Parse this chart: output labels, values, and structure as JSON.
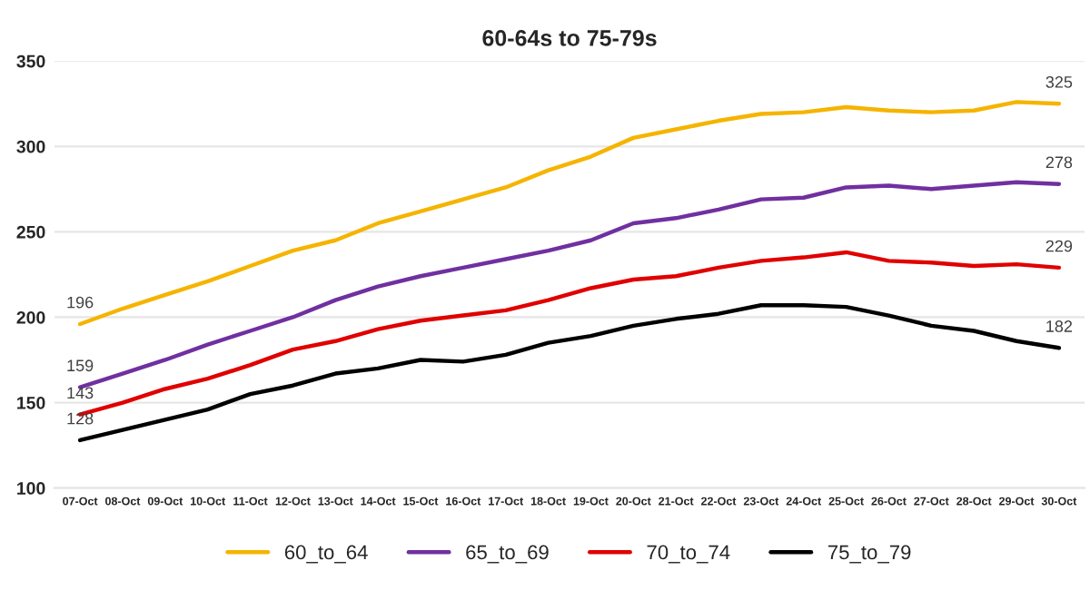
{
  "chart_data": {
    "type": "line",
    "title": "60-64s to 75-79s",
    "categories": [
      "07-Oct",
      "08-Oct",
      "09-Oct",
      "10-Oct",
      "11-Oct",
      "12-Oct",
      "13-Oct",
      "14-Oct",
      "15-Oct",
      "16-Oct",
      "17-Oct",
      "18-Oct",
      "19-Oct",
      "20-Oct",
      "21-Oct",
      "22-Oct",
      "23-Oct",
      "24-Oct",
      "25-Oct",
      "26-Oct",
      "27-Oct",
      "28-Oct",
      "29-Oct",
      "30-Oct"
    ],
    "series": [
      {
        "name": "60_to_64",
        "color": "#f5b400",
        "values": [
          196,
          205,
          213,
          221,
          230,
          239,
          245,
          255,
          262,
          269,
          276,
          286,
          294,
          305,
          310,
          315,
          319,
          320,
          323,
          321,
          320,
          321,
          326,
          325
        ],
        "value_labels": [
          "196",
          null,
          null,
          null,
          null,
          null,
          null,
          null,
          null,
          null,
          null,
          null,
          null,
          null,
          null,
          null,
          null,
          null,
          null,
          null,
          null,
          null,
          null,
          "325"
        ]
      },
      {
        "name": "65_to_69",
        "color": "#7030a0",
        "values": [
          159,
          167,
          175,
          184,
          192,
          200,
          210,
          218,
          224,
          229,
          234,
          239,
          245,
          255,
          258,
          263,
          269,
          270,
          276,
          277,
          275,
          277,
          279,
          278
        ],
        "value_labels": [
          "159",
          null,
          null,
          null,
          null,
          null,
          null,
          null,
          null,
          null,
          null,
          null,
          null,
          null,
          null,
          null,
          null,
          null,
          null,
          null,
          null,
          null,
          null,
          "278"
        ]
      },
      {
        "name": "70_to_74",
        "color": "#e00000",
        "values": [
          143,
          150,
          158,
          164,
          172,
          181,
          186,
          193,
          198,
          201,
          204,
          210,
          217,
          222,
          224,
          229,
          233,
          235,
          238,
          233,
          232,
          230,
          231,
          229
        ],
        "value_labels": [
          "143",
          null,
          null,
          null,
          null,
          null,
          null,
          null,
          null,
          null,
          null,
          null,
          null,
          null,
          null,
          null,
          null,
          null,
          null,
          null,
          null,
          null,
          null,
          "229"
        ]
      },
      {
        "name": "75_to_79",
        "color": "#000000",
        "values": [
          128,
          134,
          140,
          146,
          155,
          160,
          167,
          170,
          175,
          174,
          178,
          185,
          189,
          195,
          199,
          202,
          207,
          207,
          206,
          201,
          195,
          192,
          186,
          182
        ],
        "value_labels": [
          "128",
          null,
          null,
          null,
          null,
          null,
          null,
          null,
          null,
          null,
          null,
          null,
          null,
          null,
          null,
          null,
          null,
          null,
          null,
          null,
          null,
          null,
          null,
          "182"
        ]
      }
    ],
    "ylim": [
      100,
      350
    ],
    "yticks": [
      100,
      150,
      200,
      250,
      300,
      350
    ],
    "grid": "y",
    "legend": "bottom",
    "marker": "none",
    "line_style": "solid"
  }
}
